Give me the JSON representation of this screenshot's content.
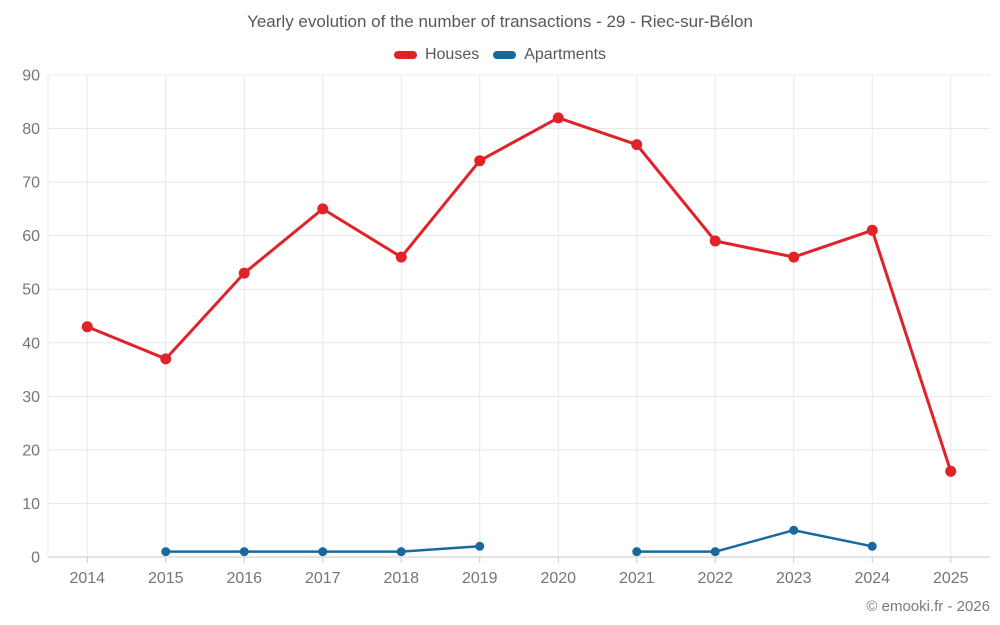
{
  "title": "Yearly evolution of the number of transactions - 29 - Riec-sur-Bélon",
  "footer": "© emooki.fr - 2026",
  "chart_data": {
    "type": "line",
    "title": "Yearly evolution of the number of transactions - 29 - Riec-sur-Bélon",
    "categories": [
      "2014",
      "2015",
      "2016",
      "2017",
      "2018",
      "2019",
      "2020",
      "2021",
      "2022",
      "2023",
      "2024",
      "2025"
    ],
    "series": [
      {
        "name": "Houses",
        "color": "#e02329",
        "values": [
          43,
          37,
          53,
          65,
          56,
          74,
          82,
          77,
          59,
          56,
          61,
          16
        ]
      },
      {
        "name": "Apartments",
        "color": "#17699e",
        "values": [
          null,
          1,
          1,
          1,
          1,
          2,
          null,
          1,
          1,
          5,
          2,
          null
        ]
      }
    ],
    "xlabel": "",
    "ylabel": "",
    "ylim": [
      0,
      90
    ],
    "y_ticks": [
      0,
      10,
      20,
      30,
      40,
      50,
      60,
      70,
      80,
      90
    ],
    "grid": true,
    "legend_position": "top",
    "grid_color": "#e8e8e8",
    "baseline_color": "#c9c9c9",
    "axis_label_color": "#757575"
  }
}
